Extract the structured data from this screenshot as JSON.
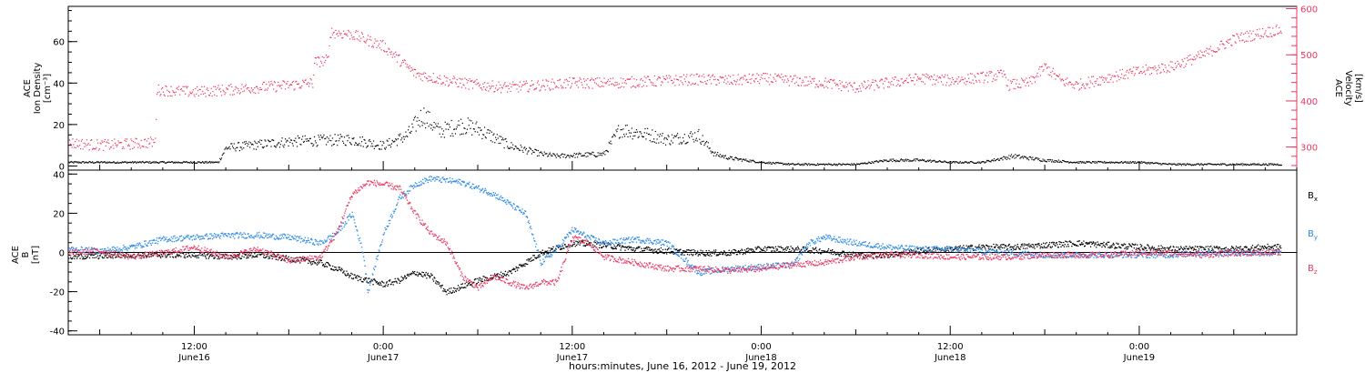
{
  "chart_data": [
    {
      "type": "scatter",
      "panel": "top",
      "ylabel_left": [
        "ACE",
        "Ion Density",
        "[cm⁻³]"
      ],
      "ylabel_right": [
        "ACE",
        "Velocity",
        "[km/s]"
      ],
      "y_left_ticks": [
        "0",
        "20",
        "40",
        "60"
      ],
      "y_left_lim": [
        -2,
        77
      ],
      "y_right_ticks": [
        "300",
        "400",
        "500",
        "600"
      ],
      "y_right_lim": [
        250,
        605
      ],
      "x_hours_lim": [
        0,
        78
      ],
      "grid": false,
      "series": [
        {
          "name": "Ion Density",
          "axis": "left",
          "color": "#000000",
          "x_hours": [
            0,
            4,
            8,
            9.5,
            10,
            14,
            18,
            20,
            21.5,
            22.5,
            23.5,
            25,
            26,
            28,
            30,
            31,
            34,
            35,
            37,
            38,
            40,
            41,
            42,
            44,
            46,
            48,
            50,
            52,
            54,
            56,
            58,
            60,
            62,
            64,
            66,
            68,
            70,
            72,
            74,
            76,
            77
          ],
          "values": [
            2,
            2,
            2,
            2,
            9,
            12,
            13,
            10,
            15,
            25,
            17,
            20,
            18,
            10,
            6,
            5,
            6,
            18,
            15,
            13,
            15,
            6,
            4,
            2,
            1,
            1,
            1,
            3,
            3,
            2,
            2,
            5,
            3,
            2,
            2,
            2,
            1,
            1,
            1,
            1,
            1
          ]
        },
        {
          "name": "Velocity",
          "axis": "right",
          "color": "#e8375f",
          "x_hours": [
            0,
            2,
            4,
            5.5,
            5.6,
            8,
            10,
            12,
            14,
            15.5,
            15.6,
            16.5,
            16.6,
            18,
            20,
            22,
            24,
            26,
            28,
            30,
            32,
            34,
            36,
            38,
            40,
            42,
            44,
            46,
            48,
            50,
            52,
            54,
            56,
            58,
            59.5,
            59.6,
            61,
            62,
            62.5,
            63,
            64,
            66,
            68,
            70,
            72,
            74,
            76,
            77
          ],
          "values": [
            310,
            305,
            308,
            312,
            425,
            420,
            425,
            430,
            435,
            440,
            485,
            490,
            550,
            545,
            520,
            460,
            445,
            435,
            430,
            435,
            440,
            440,
            442,
            445,
            448,
            445,
            450,
            445,
            440,
            430,
            440,
            450,
            445,
            452,
            458,
            435,
            440,
            475,
            460,
            445,
            435,
            452,
            465,
            475,
            500,
            535,
            550,
            555
          ]
        }
      ]
    },
    {
      "type": "line",
      "panel": "bottom",
      "ylabel": [
        "ACE",
        "B",
        "[nT]"
      ],
      "y_ticks": [
        "-40",
        "-20",
        "0",
        "20",
        "40"
      ],
      "ylim": [
        -42,
        42
      ],
      "x_hours_lim": [
        0,
        78
      ],
      "zero_line": true,
      "grid": false,
      "x_tick_labels": [
        {
          "x_hours": 8,
          "time": "12:00",
          "day": "June16"
        },
        {
          "x_hours": 20,
          "time": "0:00",
          "day": "June17"
        },
        {
          "x_hours": 32,
          "time": "12:00",
          "day": "June17"
        },
        {
          "x_hours": 44,
          "time": "0:00",
          "day": "June18"
        },
        {
          "x_hours": 56,
          "time": "12:00",
          "day": "June18"
        },
        {
          "x_hours": 68,
          "time": "0:00",
          "day": "June19"
        }
      ],
      "xlabel": "hours:minutes, June 16, 2012 - June 19, 2012",
      "series": [
        {
          "name": "Bx",
          "label_base": "B",
          "label_sub": "x",
          "color": "#000000",
          "x_hours": [
            0,
            4,
            8,
            10,
            12,
            14,
            16,
            17,
            18,
            20,
            21,
            22,
            23,
            24,
            26,
            28,
            29,
            30,
            32,
            34,
            36,
            38,
            40,
            42,
            44,
            46,
            48,
            50,
            52,
            54,
            56,
            58,
            60,
            62,
            64,
            66,
            68,
            70,
            72,
            74,
            76,
            77
          ],
          "values": [
            -2,
            -1,
            -1,
            -2,
            -1,
            -3,
            -5,
            -8,
            -12,
            -16,
            -14,
            -10,
            -12,
            -20,
            -14,
            -10,
            -5,
            0,
            5,
            4,
            2,
            1,
            0,
            0,
            2,
            2,
            1,
            -1,
            -1,
            1,
            2,
            3,
            3,
            4,
            5,
            4,
            3,
            2,
            2,
            2,
            3,
            3
          ]
        },
        {
          "name": "By",
          "label_base": "B",
          "label_sub": "y",
          "color": "#2b8ae6",
          "x_hours": [
            0,
            2,
            4,
            6,
            8,
            10,
            12,
            14,
            16,
            17,
            18,
            18.7,
            19,
            20,
            21,
            22,
            23,
            24,
            25,
            26,
            27,
            28,
            29,
            29.5,
            30,
            31,
            32,
            33,
            34,
            35,
            36,
            37,
            38,
            40,
            42,
            44,
            46,
            47,
            48,
            50,
            52,
            54,
            56,
            58,
            60,
            62,
            64,
            66,
            68,
            70,
            72,
            74,
            76,
            77
          ],
          "values": [
            2,
            1,
            3,
            7,
            8,
            9,
            9,
            8,
            5,
            10,
            20,
            0,
            -20,
            10,
            28,
            35,
            38,
            37,
            36,
            33,
            30,
            25,
            20,
            8,
            -5,
            2,
            12,
            8,
            5,
            6,
            7,
            6,
            5,
            -10,
            -8,
            -7,
            -6,
            5,
            8,
            5,
            3,
            2,
            2,
            1,
            0,
            -1,
            -1,
            -1,
            -1,
            -1,
            0,
            0,
            0,
            0
          ]
        },
        {
          "name": "Bz",
          "label_base": "B",
          "label_sub": "z",
          "color": "#e8375f",
          "x_hours": [
            0,
            2,
            4,
            6,
            8,
            10,
            12,
            14,
            16,
            17,
            18,
            19,
            20,
            21,
            22,
            23,
            24,
            25,
            26,
            27,
            28,
            29,
            30,
            31,
            32,
            33,
            34,
            36,
            38,
            40,
            42,
            44,
            46,
            48,
            50,
            52,
            54,
            56,
            58,
            60,
            62,
            64,
            66,
            68,
            70,
            72,
            74,
            76,
            77
          ],
          "values": [
            0,
            1,
            -2,
            0,
            3,
            -2,
            2,
            -4,
            -2,
            10,
            30,
            36,
            35,
            33,
            20,
            10,
            5,
            -12,
            -18,
            -12,
            -15,
            -18,
            -15,
            -15,
            8,
            5,
            -2,
            -5,
            -8,
            -8,
            -9,
            -8,
            -6,
            -5,
            -2,
            -1,
            -1,
            -2,
            -2,
            -2,
            -1,
            -1,
            -1,
            0,
            0,
            -1,
            0,
            0,
            0
          ]
        }
      ]
    }
  ]
}
